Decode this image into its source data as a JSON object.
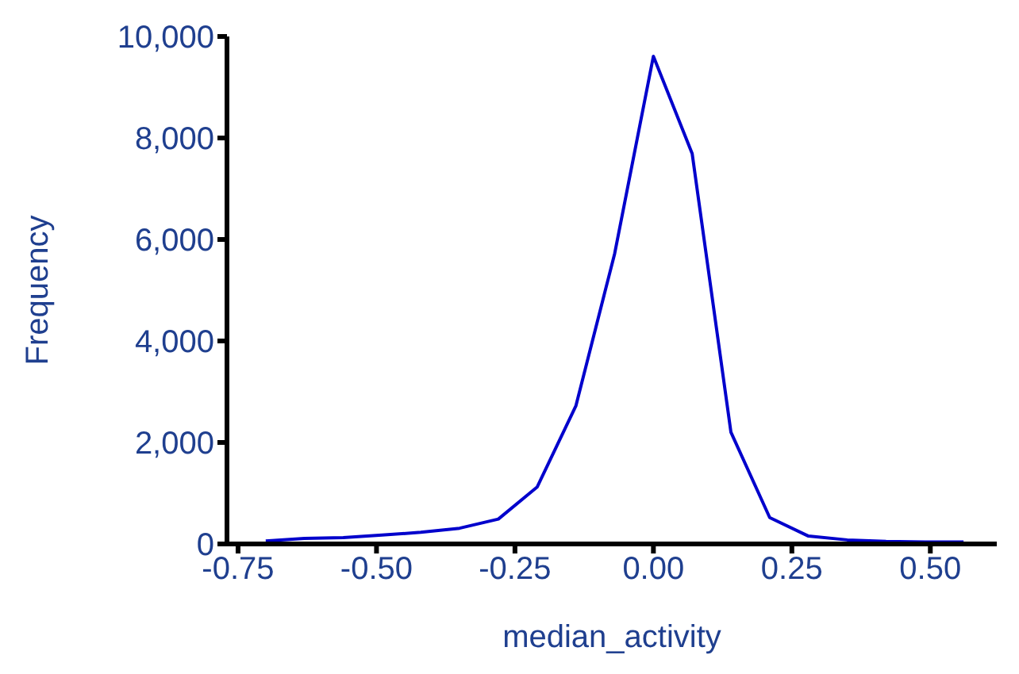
{
  "chart_data": {
    "type": "line",
    "xlabel": "median_activity",
    "ylabel": "Frequency",
    "x": [
      -0.7,
      -0.63,
      -0.56,
      -0.49,
      -0.42,
      -0.35,
      -0.28,
      -0.21,
      -0.14,
      -0.07,
      0.0,
      0.07,
      0.14,
      0.21,
      0.28,
      0.35,
      0.42,
      0.49,
      0.56
    ],
    "series": [
      {
        "color": "#0000cc",
        "values": [
          60,
          110,
          125,
          175,
          230,
          310,
          490,
          1120,
          2720,
          5720,
          9610,
          7690,
          2200,
          520,
          155,
          80,
          50,
          40,
          40
        ]
      }
    ],
    "xlim": [
      -0.77,
      0.62
    ],
    "xticks": [
      {
        "value": -0.75,
        "label": "-0.75"
      },
      {
        "value": -0.5,
        "label": "-0.50"
      },
      {
        "value": -0.25,
        "label": "-0.25"
      },
      {
        "value": 0,
        "label": "0.00"
      },
      {
        "value": 0.25,
        "label": "0.25"
      },
      {
        "value": 0.5,
        "label": "0.50"
      }
    ],
    "ylim": [
      0,
      10000
    ],
    "yticks": [
      {
        "value": 0,
        "label": "0"
      },
      {
        "value": 2000,
        "label": "2,000"
      },
      {
        "value": 4000,
        "label": "4,000"
      },
      {
        "value": 6000,
        "label": "6,000"
      },
      {
        "value": 8000,
        "label": "8,000"
      },
      {
        "value": 10000,
        "label": "10,000"
      }
    ],
    "grid": false,
    "legend": false,
    "marker": "none",
    "line_style": "solid"
  }
}
